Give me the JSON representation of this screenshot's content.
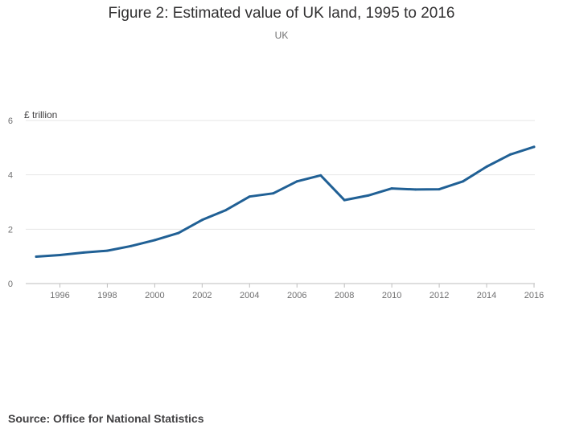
{
  "chart_data": {
    "type": "line",
    "title": "Figure 2: Estimated value of UK land, 1995 to 2016",
    "subtitle": "UK",
    "ylabel": "£ trillion",
    "xlabel": "",
    "source": "Source: Office for National Statistics",
    "xlim": [
      1995,
      2016
    ],
    "ylim": [
      0,
      6
    ],
    "yticks": [
      0,
      2,
      4,
      6
    ],
    "xticks": [
      1996,
      1998,
      2000,
      2002,
      2004,
      2006,
      2008,
      2010,
      2012,
      2014,
      2016
    ],
    "grid": true,
    "series": [
      {
        "name": "Estimated value of UK land",
        "color": "#206095",
        "x": [
          1995,
          1996,
          1997,
          1998,
          1999,
          2000,
          2001,
          2002,
          2003,
          2004,
          2005,
          2006,
          2007,
          2008,
          2009,
          2010,
          2011,
          2012,
          2013,
          2014,
          2015,
          2016
        ],
        "values": [
          0.99,
          1.05,
          1.14,
          1.21,
          1.38,
          1.6,
          1.86,
          2.34,
          2.7,
          3.2,
          3.32,
          3.76,
          3.98,
          3.07,
          3.24,
          3.5,
          3.46,
          3.47,
          3.76,
          4.3,
          4.75,
          5.03
        ]
      }
    ],
    "colors": {
      "line": "#206095",
      "grid": "#e6e6e6",
      "axis": "#bebebe"
    }
  }
}
